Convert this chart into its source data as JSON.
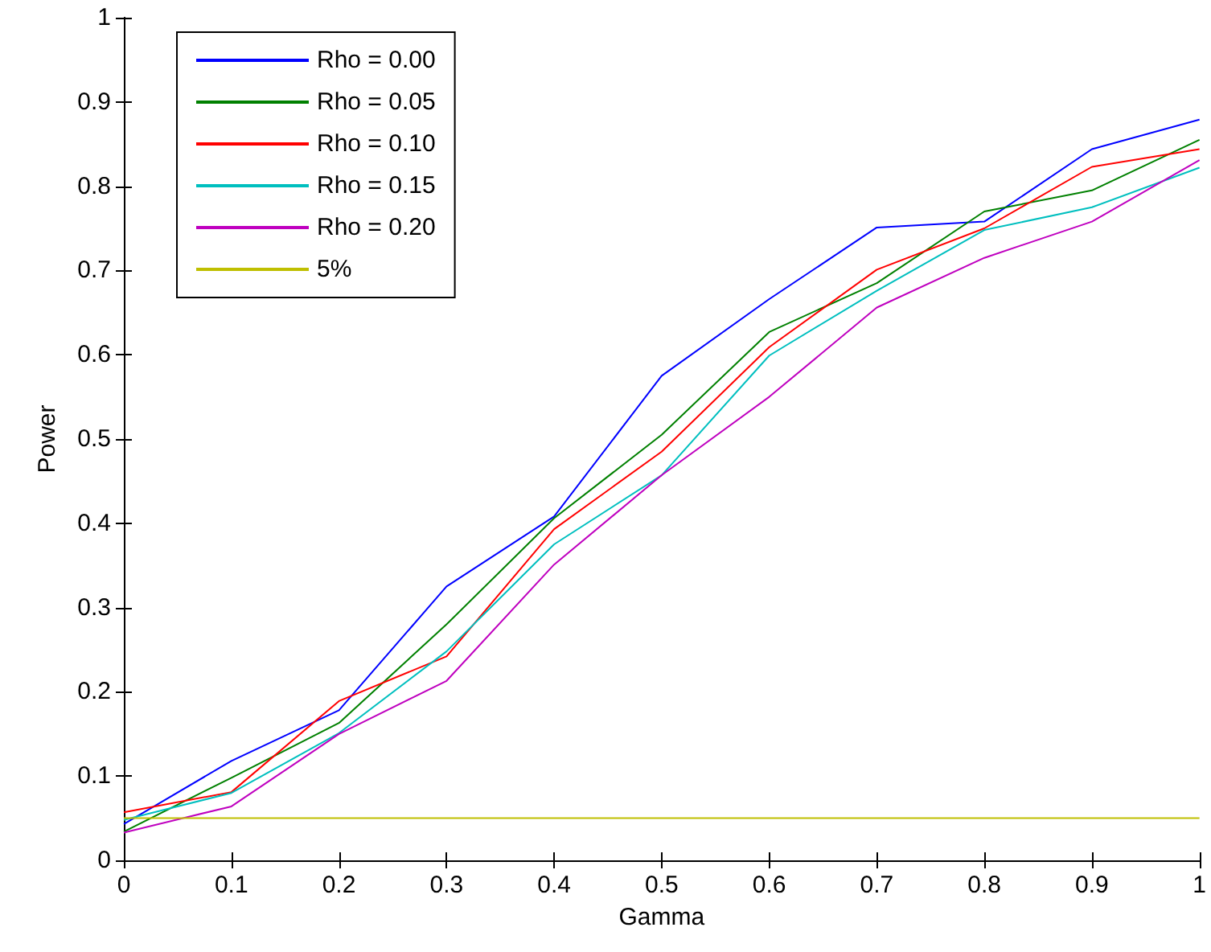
{
  "chart_data": {
    "type": "line",
    "xlabel": "Gamma",
    "ylabel": "Power",
    "x": [
      0,
      0.1,
      0.2,
      0.3,
      0.4,
      0.5,
      0.6,
      0.7,
      0.8,
      0.9,
      1
    ],
    "xlim": [
      0,
      1
    ],
    "ylim": [
      0,
      1
    ],
    "xticks": [
      0,
      0.1,
      0.2,
      0.3,
      0.4,
      0.5,
      0.6,
      0.7,
      0.8,
      0.9,
      1
    ],
    "yticks": [
      0,
      0.1,
      0.2,
      0.3,
      0.4,
      0.5,
      0.6,
      0.7,
      0.8,
      0.9,
      1
    ],
    "grid": false,
    "legend": "top left",
    "marker": "none",
    "line_style": "solid",
    "series": [
      {
        "name": "Rho = 0.00",
        "color": "#0000ff",
        "values": [
          0.043,
          0.118,
          0.178,
          0.325,
          0.408,
          0.575,
          0.666,
          0.751,
          0.758,
          0.844,
          0.879
        ]
      },
      {
        "name": "Rho = 0.05",
        "color": "#008000",
        "values": [
          0.034,
          0.098,
          0.163,
          0.28,
          0.406,
          0.505,
          0.627,
          0.685,
          0.77,
          0.795,
          0.855
        ]
      },
      {
        "name": "Rho = 0.10",
        "color": "#ff0000",
        "values": [
          0.057,
          0.081,
          0.189,
          0.242,
          0.393,
          0.485,
          0.609,
          0.701,
          0.75,
          0.823,
          0.844
        ]
      },
      {
        "name": "Rho = 0.15",
        "color": "#00bfbf",
        "values": [
          0.048,
          0.08,
          0.151,
          0.248,
          0.375,
          0.457,
          0.599,
          0.676,
          0.748,
          0.775,
          0.822
        ]
      },
      {
        "name": "Rho = 0.20",
        "color": "#bf00bf",
        "values": [
          0.033,
          0.064,
          0.15,
          0.213,
          0.351,
          0.457,
          0.55,
          0.656,
          0.715,
          0.758,
          0.831
        ]
      },
      {
        "name": "5%",
        "color": "#bfbf00",
        "values": [
          0.05,
          0.05,
          0.05,
          0.05,
          0.05,
          0.05,
          0.05,
          0.05,
          0.05,
          0.05,
          0.05
        ]
      }
    ]
  }
}
